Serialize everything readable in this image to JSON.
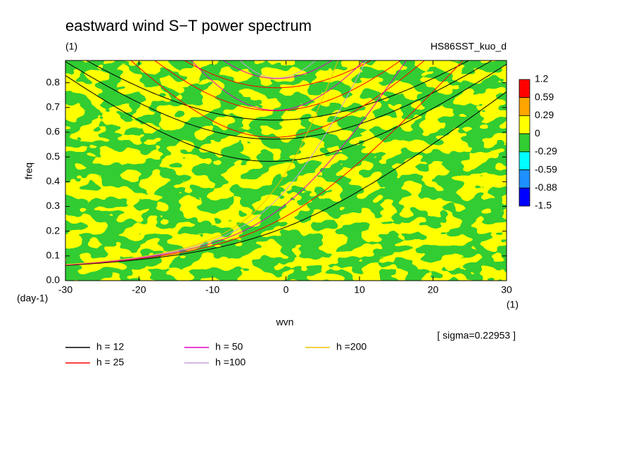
{
  "chart_data": {
    "type": "contour",
    "title": "eastward wind S−T power spectrum",
    "subtitle": "(1)",
    "run_label": "HS86SST_kuo_d",
    "x_label": "wvn",
    "y_label": "freq",
    "x_unit": "(1)",
    "y_unit": "(day-1)",
    "note": "[ sigma=0.22953 ]",
    "xlim": [
      -30,
      30
    ],
    "ylim": [
      0,
      0.89
    ],
    "xticks": [
      -30,
      -20,
      -10,
      0,
      10,
      20,
      30
    ],
    "yticks": [
      {
        "value": 0,
        "label": "0.0"
      },
      0.1,
      0.2,
      0.3,
      0.4,
      0.5,
      0.6,
      0.7,
      0.8
    ],
    "colorbar": {
      "levels": [
        1.2,
        0.59,
        0.29,
        0,
        -0.29,
        -0.59,
        -0.88,
        -1.5
      ],
      "colors": [
        "#ff0000",
        "#ffa500",
        "#ffff00",
        "#32cd32",
        "#00ffff",
        "#1e90ff",
        "#0000ff"
      ]
    },
    "series": [
      {
        "name": "h = 12",
        "h": 12,
        "color": "#000000"
      },
      {
        "name": "h = 25",
        "h": 25,
        "color": "#ff0000"
      },
      {
        "name": "h = 50",
        "h": 50,
        "color": "#e000c0"
      },
      {
        "name": "h =100",
        "h": 100,
        "color": "#c8a0e0"
      },
      {
        "name": "h =200",
        "h": 200,
        "color": "#f0c000"
      }
    ]
  }
}
